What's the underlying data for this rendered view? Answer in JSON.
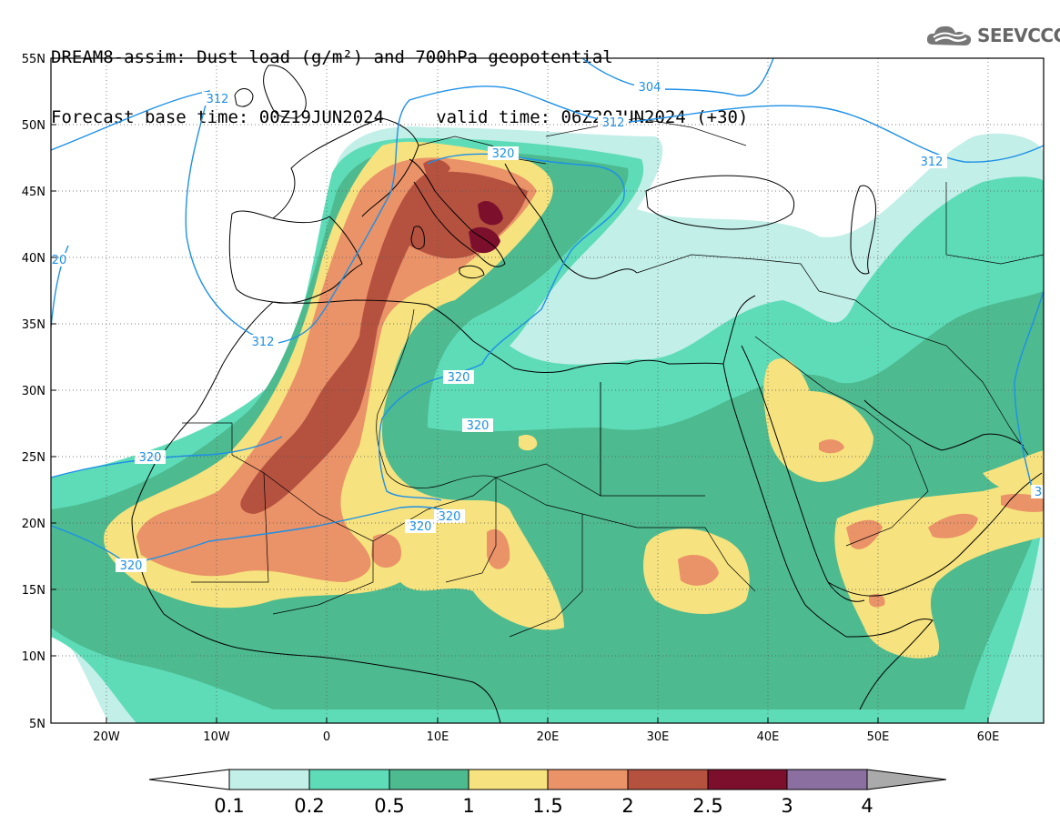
{
  "header": {
    "title_line1": "DREAM8-assim: Dust load (g/m²) and 700hPa geopotential",
    "title_line2": "Forecast base time: 00Z19JUN2024     valid time: 06Z20JUN2024 (+30)"
  },
  "logo": {
    "text": "SEEVCCC",
    "icon": "cloud-icon"
  },
  "map": {
    "lat_labels": [
      "55N",
      "50N",
      "45N",
      "40N",
      "35N",
      "30N",
      "25N",
      "20N",
      "15N",
      "10N",
      "5N"
    ],
    "lon_labels": [
      "20W",
      "10W",
      "0",
      "10E",
      "20E",
      "30E",
      "40E",
      "50E",
      "60E"
    ],
    "contour_labels": [
      "304",
      "312",
      "312",
      "312",
      "312",
      "320",
      "320",
      "320",
      "320",
      "320",
      "320",
      "320",
      "20",
      "3"
    ]
  },
  "colorbar": {
    "ticks": [
      "0.1",
      "0.2",
      "0.5",
      "1",
      "1.5",
      "2",
      "2.5",
      "3",
      "4"
    ],
    "colors": [
      "#c2efe8",
      "#5edcb8",
      "#4dba90",
      "#f6e27e",
      "#ea9268",
      "#b5513f",
      "#7c0f2c",
      "#8a6fa0"
    ],
    "under_color": "#ffffff",
    "over_color": "#aaaaaa"
  }
}
